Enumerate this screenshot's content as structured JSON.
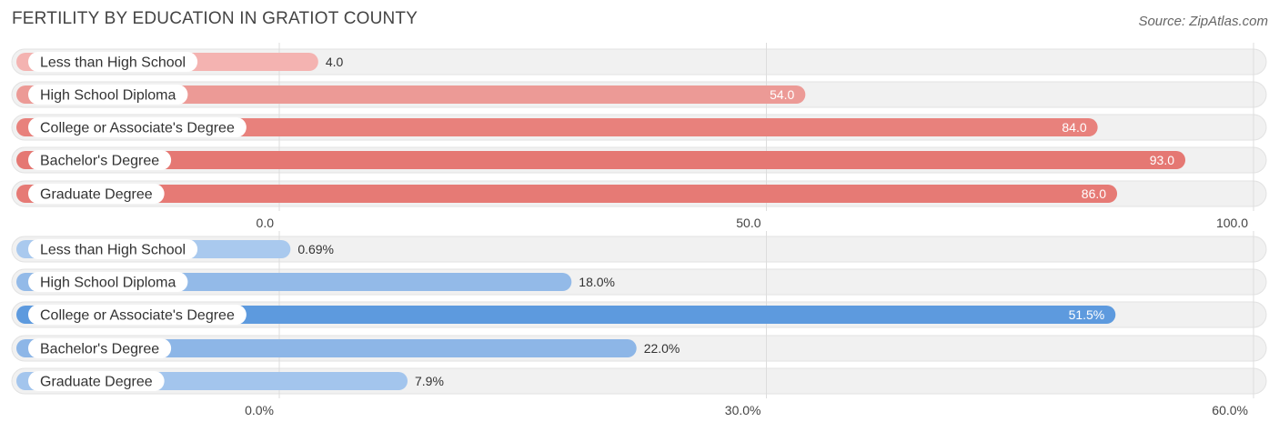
{
  "header": {
    "title": "FERTILITY BY EDUCATION IN GRATIOT COUNTY",
    "source": "Source: ZipAtlas.com"
  },
  "chart_data": [
    {
      "type": "bar",
      "orientation": "horizontal",
      "categories": [
        "Less than High School",
        "High School Diploma",
        "College or Associate's Degree",
        "Bachelor's Degree",
        "Graduate Degree"
      ],
      "values": [
        4.0,
        54.0,
        84.0,
        93.0,
        86.0
      ],
      "value_labels": [
        "4.0",
        "54.0",
        "84.0",
        "93.0",
        "86.0"
      ],
      "xlim": [
        0,
        100
      ],
      "ticks": [
        0,
        50,
        100
      ],
      "tick_labels": [
        "0.0",
        "50.0",
        "100.0"
      ],
      "colors": [
        "#f4b3b1",
        "#ec9a96",
        "#e8817c",
        "#e57873",
        "#e67a75"
      ],
      "grid": true
    },
    {
      "type": "bar",
      "orientation": "horizontal",
      "categories": [
        "Less than High School",
        "High School Diploma",
        "College or Associate's Degree",
        "Bachelor's Degree",
        "Graduate Degree"
      ],
      "values": [
        0.69,
        18.0,
        51.5,
        22.0,
        7.9
      ],
      "value_labels": [
        "0.69%",
        "18.0%",
        "51.5%",
        "22.0%",
        "7.9%"
      ],
      "xlim": [
        0,
        60
      ],
      "ticks": [
        0,
        30,
        60
      ],
      "tick_labels": [
        "0.0%",
        "30.0%",
        "60.0%"
      ],
      "colors": [
        "#a9c9ee",
        "#93bae8",
        "#5d9ade",
        "#8db6e7",
        "#a3c5ed"
      ],
      "grid": true
    }
  ]
}
